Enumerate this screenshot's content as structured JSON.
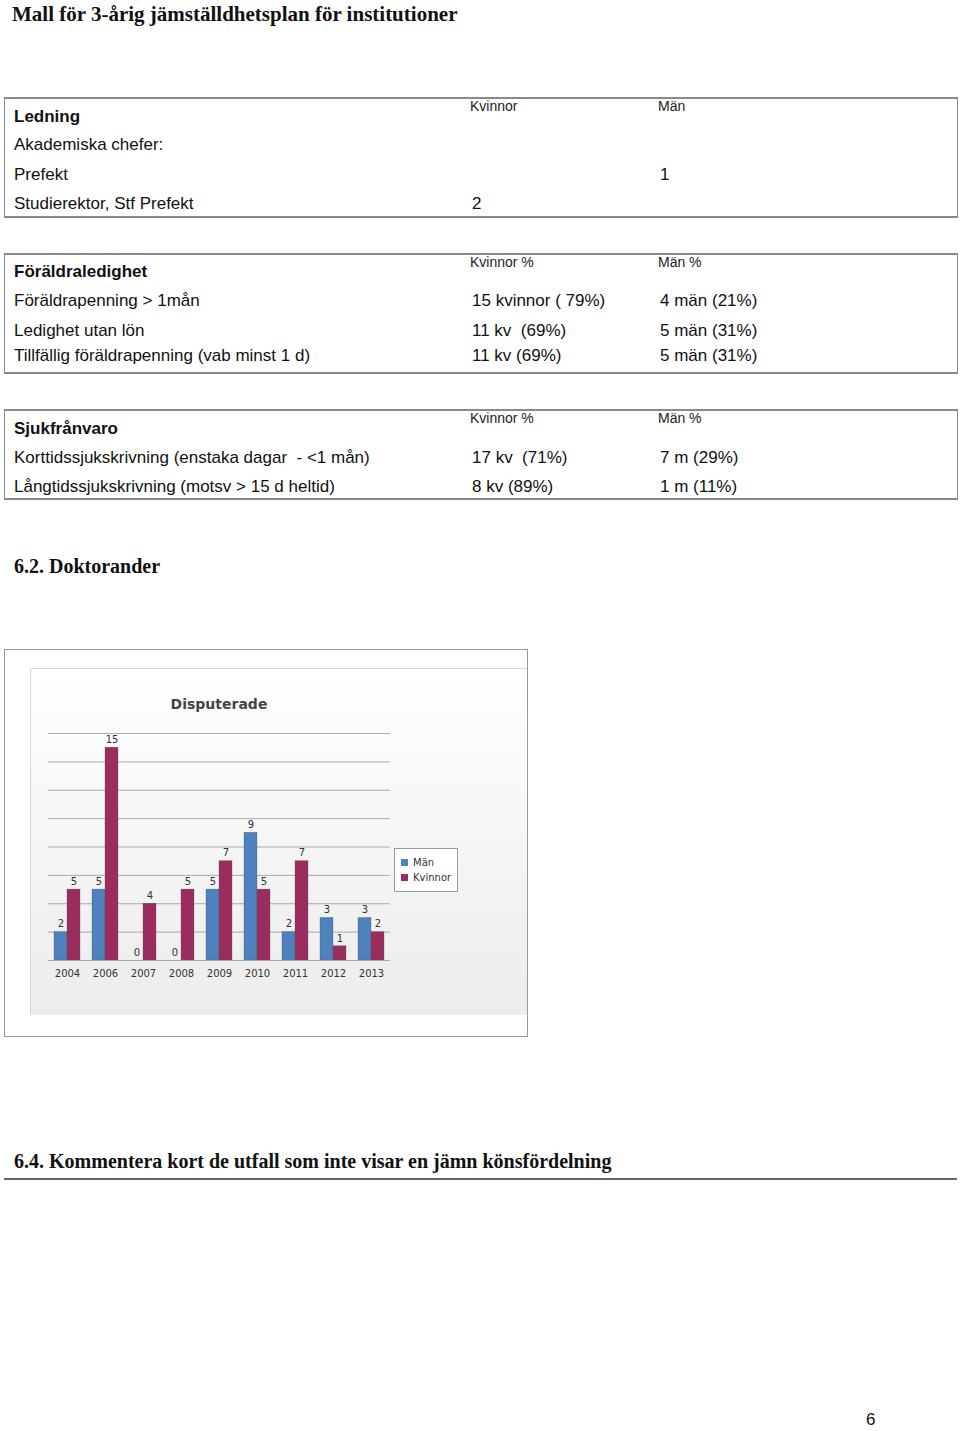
{
  "title": "Mall för 3-årig jämställdhetsplan för institutioner",
  "tables": [
    {
      "header": [
        "Ledning",
        "Kvinnor",
        "Män"
      ],
      "rows": [
        [
          "Akademiska chefer:",
          null,
          null
        ],
        [
          "Prefekt",
          null,
          "1"
        ],
        [
          "Studierektor, Stf Prefekt",
          "2",
          null
        ]
      ]
    },
    {
      "header": [
        "Föräldraledighet",
        "Kvinnor %",
        "Män %"
      ],
      "rows": [
        [
          "Föräldrapenning > 1mån",
          "15 kvinnor ( 79%)",
          "4 män (21%)"
        ],
        [
          "Ledighet utan lön",
          "11 kv  (69%)",
          "5 män (31%)"
        ],
        [
          "Tillfällig föräldrapenning (vab minst 1 d)",
          "11 kv (69%)",
          "5 män (31%)"
        ]
      ]
    },
    {
      "header": [
        "Sjukfrånvaro",
        "Kvinnor %",
        "Män %"
      ],
      "rows": [
        [
          "Korttidssjukskrivning (enstaka dagar  - <1 mån)",
          "17 kv  (71%)",
          "7 m (29%)"
        ],
        [
          "Långtidssjukskrivning (motsv > 15 d heltid)",
          "8 kv (89%)",
          "1 m (11%)"
        ]
      ]
    }
  ],
  "headings": [
    "6.2. Doktorander",
    "6.4. Kommentera kort de utfall som inte visar en jämn könsfördelning"
  ],
  "page_number": "6",
  "chart_data": {
    "type": "bar",
    "title": "Disputerade",
    "categories": [
      "2004",
      "2006",
      "2007",
      "2008",
      "2009",
      "2010",
      "2011",
      "2012",
      "2013"
    ],
    "series": [
      {
        "name": "Män",
        "color": "#4f81bd",
        "values": [
          2,
          5,
          0,
          0,
          5,
          9,
          2,
          3,
          3
        ]
      },
      {
        "name": "Kvinnor",
        "color": "#9b2d5e",
        "values": [
          5,
          15,
          4,
          5,
          7,
          5,
          7,
          1,
          2
        ]
      }
    ],
    "ylim": [
      0,
      16
    ],
    "yticks": [
      0,
      2,
      4,
      6,
      8,
      10,
      12,
      14,
      16
    ],
    "grid": true,
    "legend": "right",
    "data_labels": true,
    "tick_labels": "x"
  }
}
